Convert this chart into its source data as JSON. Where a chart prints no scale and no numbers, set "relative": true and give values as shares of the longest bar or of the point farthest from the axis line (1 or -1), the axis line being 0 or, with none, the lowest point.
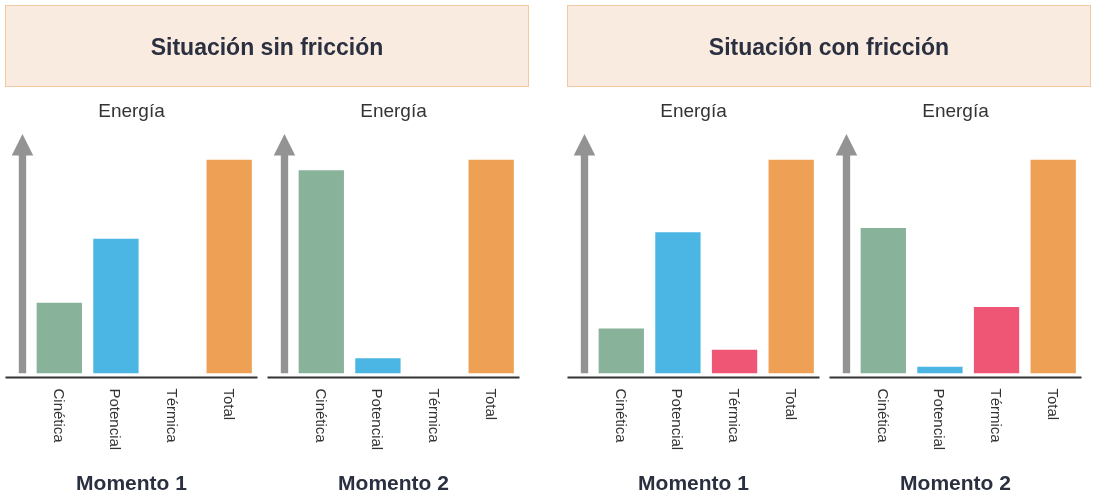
{
  "chart_data": [
    {
      "type": "bar",
      "title": "Situación sin fricción",
      "ylabel": "Energía",
      "xlabel": "Momento 1",
      "relative": true,
      "categories": [
        "Cinética",
        "Potencial",
        "Térmica",
        "Total"
      ],
      "values": [
        0.33,
        0.63,
        0,
        1
      ],
      "colors": [
        "#88b29a",
        "#4bb6e3",
        "#ef5675",
        "#eea055"
      ]
    },
    {
      "type": "bar",
      "ylabel": "Energía",
      "xlabel": "Momento 2",
      "relative": true,
      "categories": [
        "Cinética",
        "Potencial",
        "Térmica",
        "Total"
      ],
      "values": [
        0.95,
        0.07,
        0,
        1
      ],
      "colors": [
        "#88b29a",
        "#4bb6e3",
        "#ef5675",
        "#eea055"
      ]
    },
    {
      "type": "bar",
      "title": "Situación con fricción",
      "ylabel": "Energía",
      "xlabel": "Momento 1",
      "relative": true,
      "categories": [
        "Cinética",
        "Potencial",
        "Térmica",
        "Total"
      ],
      "values": [
        0.21,
        0.66,
        0.11,
        1
      ],
      "colors": [
        "#88b29a",
        "#4bb6e3",
        "#ef5675",
        "#eea055"
      ]
    },
    {
      "type": "bar",
      "ylabel": "Energía",
      "xlabel": "Momento 2",
      "relative": true,
      "categories": [
        "Cinética",
        "Potencial",
        "Térmica",
        "Total"
      ],
      "values": [
        0.68,
        0.03,
        0.31,
        1
      ],
      "colors": [
        "#88b29a",
        "#4bb6e3",
        "#ef5675",
        "#eea055"
      ]
    }
  ]
}
